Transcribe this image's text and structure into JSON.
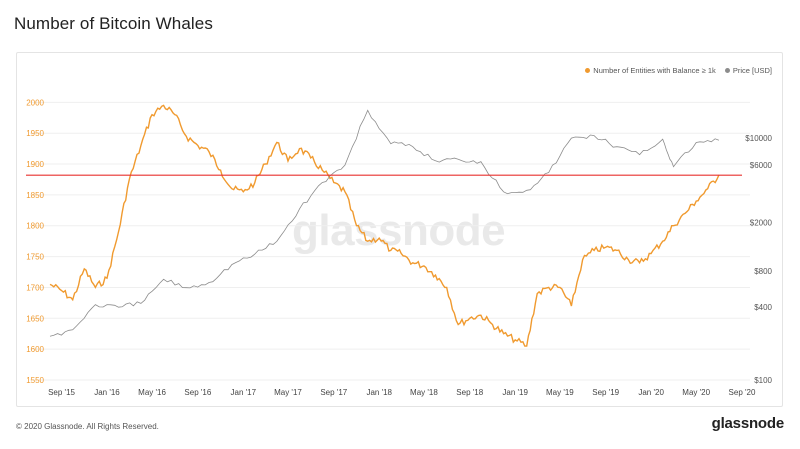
{
  "page": {
    "title": "Number of Bitcoin Whales",
    "watermark": "glassnode",
    "copyright": "© 2020 Glassnode. All Rights Reserved.",
    "logo": "glassnode"
  },
  "chart_data": {
    "type": "line",
    "title": "Number of Bitcoin Whales",
    "legend_position": "top-right",
    "grid": true,
    "x_ticks": [
      "Sep '15",
      "Jan '16",
      "May '16",
      "Sep '16",
      "Jan '17",
      "May '17",
      "Sep '17",
      "Jan '18",
      "May '18",
      "Sep '18",
      "Jan '19",
      "May '19",
      "Sep '19",
      "Jan '20",
      "May '20",
      "Sep '20"
    ],
    "x_range": [
      "2015-08-01",
      "2020-09-01"
    ],
    "y_left": {
      "range": [
        1550,
        2020
      ],
      "ticks": [
        1550,
        1600,
        1650,
        1700,
        1750,
        1800,
        1850,
        1900,
        1950,
        2000
      ],
      "color": "#f09a2f"
    },
    "y_right": {
      "scale": "log",
      "range": [
        100,
        25000
      ],
      "ticks": [
        100,
        400,
        800,
        2000,
        6000,
        10000
      ],
      "tick_labels": [
        "$100",
        "$400",
        "$800",
        "$2000",
        "$6000",
        "$10000"
      ],
      "color": "#888888"
    },
    "reference_line": {
      "value": 1882,
      "color": "#e8312f"
    },
    "series": [
      {
        "name": "Number of Entities with Balance ≥ 1k",
        "axis": "left",
        "color": "#f09a2f",
        "points": [
          [
            "2015-08-01",
            1705
          ],
          [
            "2015-09-01",
            1695
          ],
          [
            "2015-10-01",
            1680
          ],
          [
            "2015-11-01",
            1730
          ],
          [
            "2015-12-01",
            1700
          ],
          [
            "2016-01-01",
            1715
          ],
          [
            "2016-02-01",
            1790
          ],
          [
            "2016-03-01",
            1875
          ],
          [
            "2016-04-01",
            1930
          ],
          [
            "2016-05-01",
            1980
          ],
          [
            "2016-06-01",
            1995
          ],
          [
            "2016-07-01",
            1980
          ],
          [
            "2016-08-01",
            1945
          ],
          [
            "2016-09-01",
            1930
          ],
          [
            "2016-10-01",
            1920
          ],
          [
            "2016-11-01",
            1890
          ],
          [
            "2016-12-01",
            1860
          ],
          [
            "2017-01-01",
            1855
          ],
          [
            "2017-02-01",
            1870
          ],
          [
            "2017-03-01",
            1900
          ],
          [
            "2017-04-01",
            1935
          ],
          [
            "2017-05-01",
            1905
          ],
          [
            "2017-06-01",
            1925
          ],
          [
            "2017-07-01",
            1910
          ],
          [
            "2017-08-01",
            1890
          ],
          [
            "2017-09-01",
            1870
          ],
          [
            "2017-10-01",
            1855
          ],
          [
            "2017-11-01",
            1800
          ],
          [
            "2017-12-01",
            1775
          ],
          [
            "2018-01-01",
            1780
          ],
          [
            "2018-02-01",
            1760
          ],
          [
            "2018-03-01",
            1755
          ],
          [
            "2018-04-01",
            1740
          ],
          [
            "2018-05-01",
            1735
          ],
          [
            "2018-06-01",
            1720
          ],
          [
            "2018-07-01",
            1700
          ],
          [
            "2018-08-01",
            1640
          ],
          [
            "2018-09-01",
            1650
          ],
          [
            "2018-10-01",
            1655
          ],
          [
            "2018-11-01",
            1640
          ],
          [
            "2018-12-01",
            1625
          ],
          [
            "2019-01-01",
            1615
          ],
          [
            "2019-02-01",
            1605
          ],
          [
            "2019-03-01",
            1690
          ],
          [
            "2019-04-01",
            1700
          ],
          [
            "2019-05-01",
            1700
          ],
          [
            "2019-06-01",
            1670
          ],
          [
            "2019-07-01",
            1745
          ],
          [
            "2019-08-01",
            1760
          ],
          [
            "2019-09-01",
            1765
          ],
          [
            "2019-10-01",
            1760
          ],
          [
            "2019-11-01",
            1745
          ],
          [
            "2019-12-01",
            1740
          ],
          [
            "2020-01-01",
            1755
          ],
          [
            "2020-02-01",
            1775
          ],
          [
            "2020-03-01",
            1800
          ],
          [
            "2020-04-01",
            1820
          ],
          [
            "2020-05-01",
            1840
          ],
          [
            "2020-06-01",
            1860
          ],
          [
            "2020-07-01",
            1882
          ]
        ]
      },
      {
        "name": "Price [USD]",
        "axis": "right",
        "color": "#8c8c8c",
        "points": [
          [
            "2015-08-01",
            230
          ],
          [
            "2015-10-01",
            260
          ],
          [
            "2015-12-01",
            420
          ],
          [
            "2016-02-01",
            400
          ],
          [
            "2016-04-01",
            430
          ],
          [
            "2016-06-01",
            680
          ],
          [
            "2016-08-01",
            580
          ],
          [
            "2016-10-01",
            640
          ],
          [
            "2016-12-01",
            900
          ],
          [
            "2017-02-01",
            1100
          ],
          [
            "2017-04-01",
            1400
          ],
          [
            "2017-06-01",
            2600
          ],
          [
            "2017-08-01",
            4300
          ],
          [
            "2017-10-01",
            6000
          ],
          [
            "2017-12-01",
            17000
          ],
          [
            "2018-02-01",
            9000
          ],
          [
            "2018-04-01",
            8500
          ],
          [
            "2018-06-01",
            6500
          ],
          [
            "2018-08-01",
            6700
          ],
          [
            "2018-10-01",
            6400
          ],
          [
            "2018-12-01",
            3600
          ],
          [
            "2019-02-01",
            3700
          ],
          [
            "2019-04-01",
            5200
          ],
          [
            "2019-06-01",
            10000
          ],
          [
            "2019-08-01",
            10500
          ],
          [
            "2019-10-01",
            8500
          ],
          [
            "2019-12-01",
            7300
          ],
          [
            "2020-02-01",
            9800
          ],
          [
            "2020-03-01",
            5800
          ],
          [
            "2020-05-01",
            9200
          ],
          [
            "2020-07-01",
            9600
          ]
        ]
      }
    ]
  }
}
